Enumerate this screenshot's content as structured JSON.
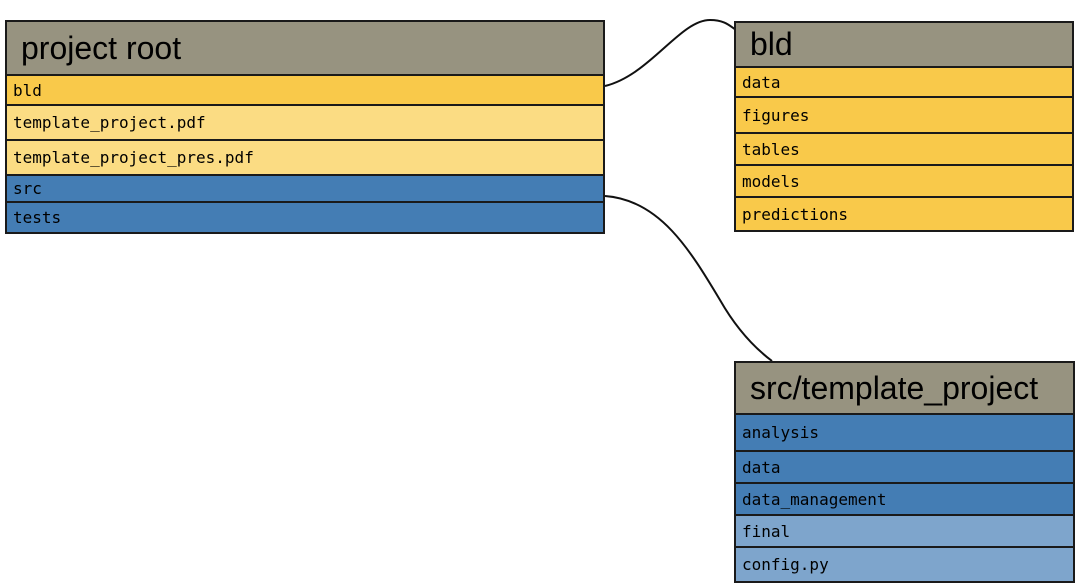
{
  "colors": {
    "title_bg": "#979380",
    "bld_folder": "#f9c94a",
    "pdf_file": "#fbdc83",
    "src_folder": "#447db4",
    "src_light": "#7ea5cc",
    "border": "#1a1a1a"
  },
  "root": {
    "title": "project root",
    "rows": [
      {
        "label": "bld",
        "color": "gold"
      },
      {
        "label": "template_project.pdf",
        "color": "light"
      },
      {
        "label": "template_project_pres.pdf",
        "color": "light"
      },
      {
        "label": "src",
        "color": "blue"
      },
      {
        "label": "tests",
        "color": "blue"
      }
    ]
  },
  "bld": {
    "title": "bld",
    "rows": [
      {
        "label": "data",
        "color": "gold"
      },
      {
        "label": "figures",
        "color": "gold"
      },
      {
        "label": "tables",
        "color": "gold"
      },
      {
        "label": "models",
        "color": "gold"
      },
      {
        "label": "predictions",
        "color": "gold"
      }
    ]
  },
  "src": {
    "title": "src/template_project",
    "rows": [
      {
        "label": "analysis",
        "color": "blue"
      },
      {
        "label": "data",
        "color": "blue"
      },
      {
        "label": "data_management",
        "color": "blue"
      },
      {
        "label": "final",
        "color": "lightblue"
      },
      {
        "label": "config.py",
        "color": "lightblue"
      }
    ]
  }
}
